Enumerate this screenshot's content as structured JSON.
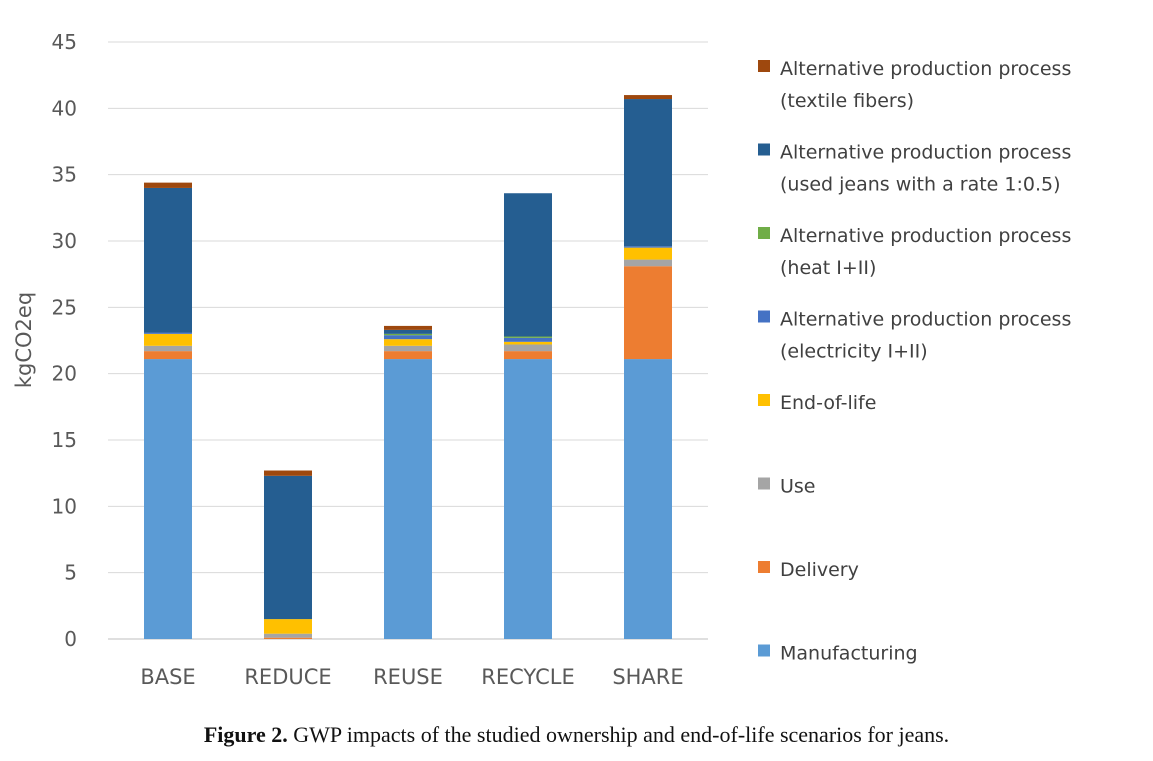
{
  "chart_data": {
    "type": "bar",
    "stacked": true,
    "categories": [
      "BASE",
      "REDUCE",
      "REUSE",
      "RECYCLE",
      "SHARE"
    ],
    "ylabel": "kgCO2eq",
    "xlabel": "",
    "ylim": [
      0,
      45
    ],
    "yticks": [
      0,
      5,
      10,
      15,
      20,
      25,
      30,
      35,
      40,
      45
    ],
    "grid": true,
    "legend_position": "right",
    "series": [
      {
        "name": "Manufacturing",
        "color": "#5B9BD5",
        "values": [
          21.1,
          0.0,
          21.1,
          21.1,
          21.1
        ]
      },
      {
        "name": "Delivery",
        "color": "#ED7D31",
        "values": [
          0.6,
          0.1,
          0.6,
          0.6,
          7.0
        ]
      },
      {
        "name": "Use",
        "color": "#A5A5A5",
        "values": [
          0.4,
          0.3,
          0.4,
          0.5,
          0.5
        ]
      },
      {
        "name": "End-of-life",
        "color": "#FFC000",
        "values": [
          0.9,
          1.1,
          0.5,
          0.2,
          0.9
        ]
      },
      {
        "name": "Alternative production process (electricity I+II)",
        "color": "#4472C4",
        "values": [
          0.1,
          0.0,
          0.3,
          0.3,
          0.1
        ]
      },
      {
        "name": "Alternative production process (heat I+II)",
        "color": "#70AD47",
        "values": [
          0.0,
          0.0,
          0.1,
          0.1,
          0.0
        ]
      },
      {
        "name": "Alternative production process (used jeans with a rate 1:0.5)",
        "color": "#255E91",
        "values": [
          10.9,
          10.8,
          0.3,
          10.8,
          11.1
        ]
      },
      {
        "name": "Alternative production process (textile fibers)",
        "color": "#9E480E",
        "values": [
          0.4,
          0.4,
          0.3,
          0.0,
          0.3
        ]
      }
    ],
    "legend": [
      {
        "lines": [
          "Alternative production process",
          "(textile fibers)"
        ],
        "color": "#9E480E"
      },
      {
        "lines": [
          "Alternative production process",
          "(used jeans with a rate 1:0.5)"
        ],
        "color": "#255E91"
      },
      {
        "lines": [
          "Alternative production process",
          "(heat I+II)"
        ],
        "color": "#70AD47"
      },
      {
        "lines": [
          "Alternative production process",
          "(electricity I+II)"
        ],
        "color": "#4472C4"
      },
      {
        "lines": [
          "End-of-life"
        ],
        "color": "#FFC000"
      },
      {
        "lines": [
          "Use"
        ],
        "color": "#A5A5A5"
      },
      {
        "lines": [
          "Delivery"
        ],
        "color": "#ED7D31"
      },
      {
        "lines": [
          "Manufacturing"
        ],
        "color": "#5B9BD5"
      }
    ]
  },
  "caption": {
    "label": "Figure 2.",
    "text": " GWP impacts of the studied ownership and end-of-life scenarios for jeans."
  }
}
